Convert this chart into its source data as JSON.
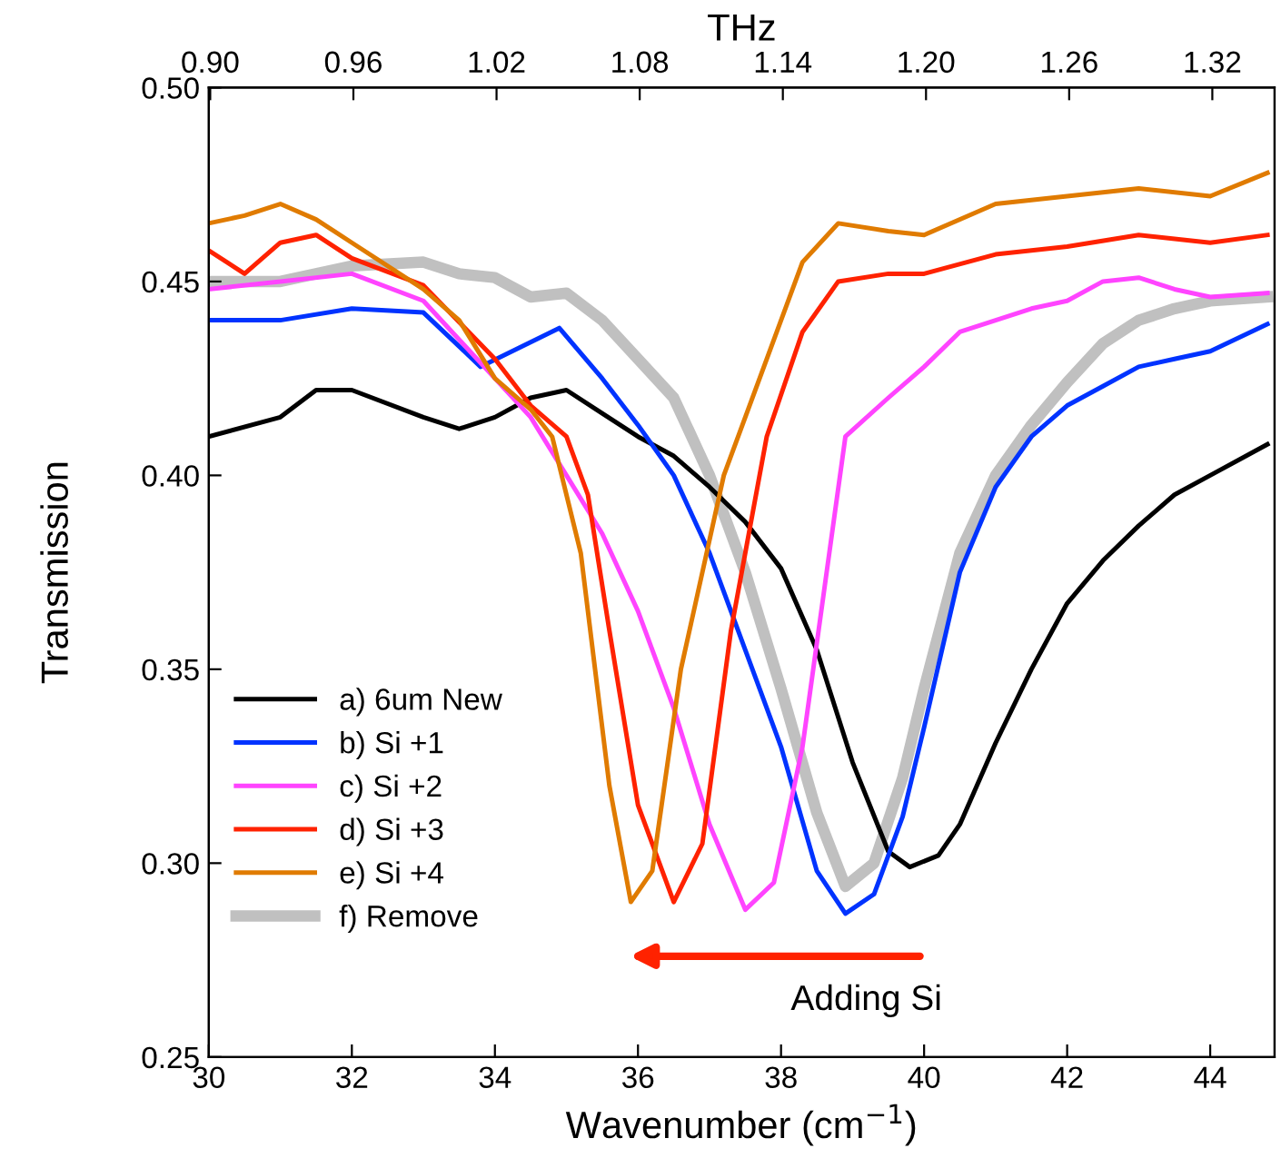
{
  "chart_data": {
    "type": "line",
    "xlabel": "Wavenumber (cm$^{−1}$)",
    "ylabel": "Transmission",
    "x2label": "THz",
    "xlim": [
      30,
      44.9
    ],
    "xticks": [
      30,
      32,
      34,
      36,
      38,
      40,
      42,
      44
    ],
    "x2lim": [
      0.8994,
      1.3461
    ],
    "x2ticks": [
      {
        "value": 0.9,
        "label": "0.90"
      },
      0.96,
      1.02,
      1.08,
      1.14,
      {
        "value": 1.2,
        "label": "1.20"
      },
      1.26,
      1.32
    ],
    "ylim": [
      0.25,
      0.5
    ],
    "yticks": [
      {
        "value": 0.25,
        "label": "0.25"
      },
      {
        "value": 0.3,
        "label": "0.30"
      },
      {
        "value": 0.35,
        "label": "0.35"
      },
      {
        "value": 0.4,
        "label": "0.40"
      },
      {
        "value": 0.45,
        "label": "0.45"
      },
      {
        "value": 0.5,
        "label": "0.50"
      }
    ],
    "grid": false,
    "legend": "bottom left",
    "marker": "none",
    "line_style": "solid",
    "annotations": [
      "Adding Si"
    ],
    "series": [
      {
        "name": "a) 6um New",
        "color": "#000000",
        "x": [
          30,
          31,
          31.5,
          32,
          33,
          33.5,
          34,
          34.5,
          35,
          35.5,
          36,
          36.5,
          37,
          37.5,
          38,
          38.5,
          39,
          39.5,
          39.8,
          40.2,
          40.5,
          41,
          41.5,
          42,
          42.5,
          43,
          43.5,
          44,
          44.8
        ],
        "values": [
          0.41,
          0.415,
          0.422,
          0.422,
          0.415,
          0.412,
          0.415,
          0.42,
          0.422,
          0.416,
          0.41,
          0.405,
          0.397,
          0.388,
          0.376,
          0.355,
          0.326,
          0.303,
          0.299,
          0.302,
          0.31,
          0.331,
          0.35,
          0.367,
          0.378,
          0.387,
          0.395,
          0.4,
          0.408
        ]
      },
      {
        "name": "b) Si +1",
        "color": "#0033ff",
        "x": [
          30,
          31,
          32,
          33,
          33.8,
          34.9,
          35.5,
          36,
          36.5,
          37,
          37.5,
          38,
          38.5,
          38.9,
          39.3,
          39.7,
          40,
          40.5,
          41,
          41.5,
          42,
          42.5,
          43,
          43.5,
          44,
          44.8
        ],
        "values": [
          0.44,
          0.44,
          0.443,
          0.442,
          0.428,
          0.438,
          0.425,
          0.413,
          0.4,
          0.38,
          0.355,
          0.33,
          0.298,
          0.287,
          0.292,
          0.312,
          0.335,
          0.375,
          0.397,
          0.41,
          0.418,
          0.423,
          0.428,
          0.43,
          0.432,
          0.439
        ]
      },
      {
        "name": "c) Si +2",
        "color": "#ff44ff",
        "x": [
          30,
          31,
          32,
          33,
          34,
          34.5,
          35,
          35.5,
          36,
          36.5,
          37,
          37.5,
          37.9,
          38.3,
          38.6,
          38.9,
          39.5,
          40,
          40.5,
          41,
          41.5,
          42,
          42.5,
          43,
          43.5,
          44,
          44.8
        ],
        "values": [
          0.448,
          0.45,
          0.452,
          0.445,
          0.425,
          0.415,
          0.4,
          0.385,
          0.365,
          0.34,
          0.31,
          0.288,
          0.295,
          0.33,
          0.37,
          0.41,
          0.42,
          0.428,
          0.437,
          0.44,
          0.443,
          0.445,
          0.45,
          0.451,
          0.448,
          0.446,
          0.447
        ]
      },
      {
        "name": "d) Si +3",
        "color": "#ff2200",
        "x": [
          30,
          30.5,
          31,
          31.5,
          32,
          33,
          34,
          34.5,
          35,
          35.3,
          35.6,
          36,
          36.5,
          36.9,
          37.3,
          37.8,
          38.3,
          38.8,
          39.5,
          40,
          41,
          42,
          43,
          44,
          44.8
        ],
        "values": [
          0.458,
          0.452,
          0.46,
          0.462,
          0.456,
          0.449,
          0.43,
          0.418,
          0.41,
          0.395,
          0.36,
          0.315,
          0.29,
          0.305,
          0.36,
          0.41,
          0.437,
          0.45,
          0.452,
          0.452,
          0.457,
          0.459,
          0.462,
          0.46,
          0.462
        ]
      },
      {
        "name": "e) Si +4",
        "color": "#e07b00",
        "x": [
          30,
          30.5,
          31,
          31.5,
          32,
          33,
          33.5,
          34,
          34.5,
          34.8,
          35.2,
          35.6,
          35.9,
          36.2,
          36.6,
          37.2,
          37.8,
          38.3,
          38.8,
          39.5,
          40,
          41,
          42,
          43,
          44,
          44.8
        ],
        "values": [
          0.465,
          0.467,
          0.47,
          0.466,
          0.46,
          0.448,
          0.44,
          0.425,
          0.417,
          0.41,
          0.38,
          0.32,
          0.29,
          0.298,
          0.35,
          0.4,
          0.43,
          0.455,
          0.465,
          0.463,
          0.462,
          0.47,
          0.472,
          0.474,
          0.472,
          0.478
        ]
      },
      {
        "name": "f) Remove",
        "color": "#c0c0c0",
        "x": [
          30,
          31,
          32,
          33,
          33.5,
          34,
          34.5,
          35,
          35.5,
          36,
          36.5,
          37,
          37.5,
          38,
          38.5,
          38.9,
          39.3,
          39.7,
          40,
          40.5,
          41,
          41.5,
          42,
          42.5,
          43,
          43.5,
          44,
          44.8
        ],
        "values": [
          0.45,
          0.45,
          0.454,
          0.455,
          0.452,
          0.451,
          0.446,
          0.447,
          0.44,
          0.43,
          0.42,
          0.4,
          0.375,
          0.345,
          0.313,
          0.294,
          0.3,
          0.322,
          0.345,
          0.38,
          0.4,
          0.413,
          0.424,
          0.434,
          0.44,
          0.443,
          0.445,
          0.446
        ]
      }
    ]
  }
}
